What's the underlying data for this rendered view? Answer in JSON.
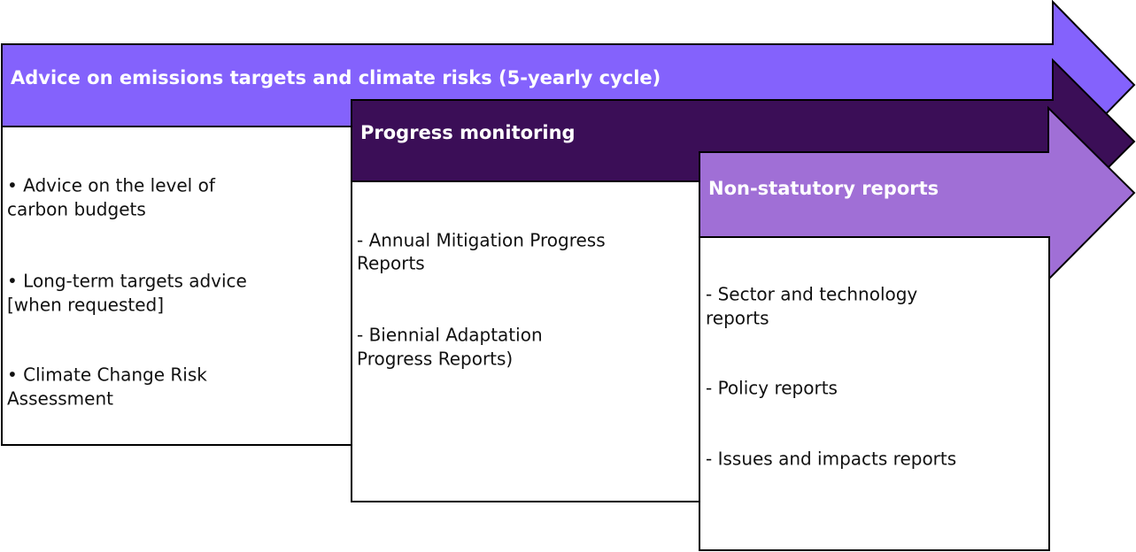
{
  "columns": [
    {
      "title": "Advice on emissions targets and climate risks (5-yearly cycle)",
      "items": [
        [
          "• Advice on the level of",
          "carbon budgets"
        ],
        [
          "• Long-term targets advice",
          "[when requested]"
        ],
        [
          "• Climate Change Risk",
          "Assessment"
        ]
      ]
    },
    {
      "title": "Progress monitoring",
      "items": [
        [
          "- Annual Mitigation Progress",
          "Reports"
        ],
        [
          "- Biennial Adaptation",
          "Progress Reports)"
        ]
      ]
    },
    {
      "title": "Non-statutory reports",
      "items": [
        [
          "- Sector and technology",
          "reports"
        ],
        [
          "- Policy reports"
        ],
        [
          "- Issues and impacts reports"
        ]
      ]
    }
  ]
}
